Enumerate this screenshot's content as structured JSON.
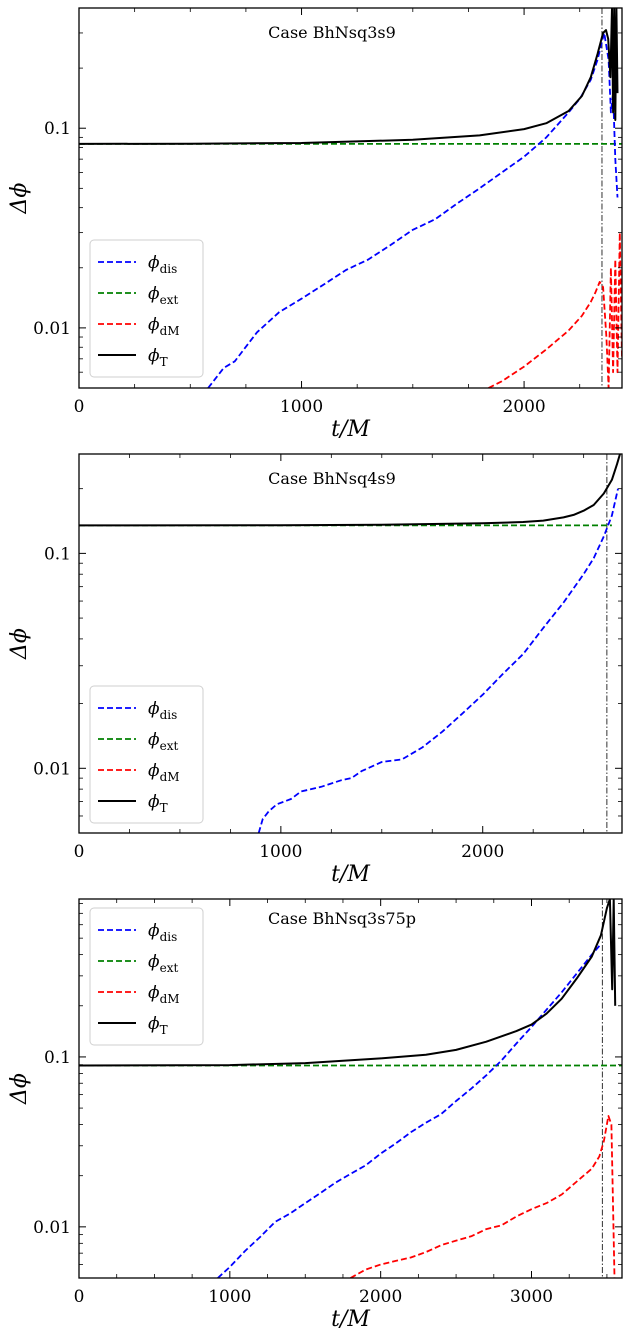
{
  "figure": {
    "panel_count": 3
  },
  "chart_data": [
    {
      "type": "line",
      "title": "Case BhNsq3s9",
      "xlabel": "t/M",
      "ylabel": "Δϕ",
      "xlim": [
        0,
        2440
      ],
      "ylim": [
        0.005,
        0.4
      ],
      "yscale": "log",
      "grid": false,
      "xticks": [
        0,
        1000,
        2000
      ],
      "xtick_labels": [
        "0",
        "1000",
        "2000"
      ],
      "yticks": [
        0.01,
        0.1
      ],
      "ytick_labels": [
        "0.01",
        "0.1"
      ],
      "legend": {
        "position": "lower-left",
        "entries": [
          {
            "base": "ϕ",
            "sub": "dis",
            "color": "#0000ff",
            "dash": "dashed"
          },
          {
            "base": "ϕ",
            "sub": "ext",
            "color": "#008000",
            "dash": "dashed"
          },
          {
            "base": "ϕ",
            "sub": "dM",
            "color": "#ff0000",
            "dash": "dashed"
          },
          {
            "base": "ϕ",
            "sub": "T",
            "color": "#000000",
            "dash": "solid"
          }
        ]
      },
      "vline_x": 2350,
      "series": [
        {
          "name": "ϕdis",
          "color": "#0000ff",
          "dash": "dashed",
          "x": [
            580,
            650,
            700,
            800,
            900,
            1000,
            1100,
            1200,
            1300,
            1400,
            1500,
            1600,
            1700,
            1800,
            1900,
            2000,
            2100,
            2200,
            2250,
            2300,
            2330,
            2360,
            2380,
            2390,
            2400,
            2410,
            2420
          ],
          "y": [
            0.005,
            0.0063,
            0.0068,
            0.0095,
            0.012,
            0.014,
            0.0165,
            0.0195,
            0.022,
            0.026,
            0.031,
            0.035,
            0.042,
            0.05,
            0.06,
            0.072,
            0.09,
            0.12,
            0.14,
            0.175,
            0.22,
            0.3,
            0.22,
            0.12,
            0.15,
            0.07,
            0.045
          ]
        },
        {
          "name": "ϕext",
          "color": "#008000",
          "dash": "dashed",
          "x": [
            0,
            2440
          ],
          "y": [
            0.0835,
            0.0835
          ]
        },
        {
          "name": "ϕdM",
          "color": "#ff0000",
          "dash": "dashed",
          "x": [
            1840,
            1900,
            2000,
            2100,
            2200,
            2260,
            2300,
            2320,
            2340,
            2355,
            2370,
            2380,
            2390,
            2400,
            2410,
            2420,
            2430,
            2440
          ],
          "y": [
            0.005,
            0.0054,
            0.0064,
            0.0078,
            0.0097,
            0.0115,
            0.0135,
            0.015,
            0.017,
            0.016,
            0.009,
            0.005,
            0.02,
            0.006,
            0.022,
            0.006,
            0.03,
            0.007
          ]
        },
        {
          "name": "ϕT",
          "color": "#000000",
          "dash": "solid",
          "x": [
            0,
            500,
            1000,
            1500,
            1800,
            2000,
            2100,
            2200,
            2260,
            2300,
            2330,
            2355,
            2368,
            2378,
            2388,
            2395,
            2400,
            2405,
            2410,
            2415,
            2420
          ],
          "y": [
            0.0835,
            0.0836,
            0.0843,
            0.0875,
            0.092,
            0.099,
            0.106,
            0.122,
            0.145,
            0.18,
            0.235,
            0.3,
            0.31,
            0.28,
            0.18,
            0.4,
            0.12,
            0.4,
            0.11,
            0.4,
            0.15
          ]
        }
      ]
    },
    {
      "type": "line",
      "title": "Case BhNsq4s9",
      "xlabel": "t/M",
      "ylabel": "Δϕ",
      "xlim": [
        0,
        2690
      ],
      "ylim": [
        0.005,
        0.29
      ],
      "yscale": "log",
      "grid": false,
      "xticks": [
        0,
        1000,
        2000
      ],
      "xtick_labels": [
        "0",
        "1000",
        "2000"
      ],
      "yticks": [
        0.01,
        0.1
      ],
      "ytick_labels": [
        "0.01",
        "0.1"
      ],
      "legend": {
        "position": "lower-left",
        "entries": [
          {
            "base": "ϕ",
            "sub": "dis",
            "color": "#0000ff",
            "dash": "dashed"
          },
          {
            "base": "ϕ",
            "sub": "ext",
            "color": "#008000",
            "dash": "dashed"
          },
          {
            "base": "ϕ",
            "sub": "dM",
            "color": "#ff0000",
            "dash": "dashed"
          },
          {
            "base": "ϕ",
            "sub": "T",
            "color": "#000000",
            "dash": "solid"
          }
        ]
      },
      "vline_x": 2615,
      "series": [
        {
          "name": "ϕdis",
          "color": "#0000ff",
          "dash": "dashed",
          "x": [
            890,
            910,
            940,
            980,
            1050,
            1100,
            1200,
            1300,
            1350,
            1400,
            1500,
            1600,
            1700,
            1800,
            1900,
            2000,
            2100,
            2200,
            2300,
            2400,
            2500,
            2550,
            2600,
            2640,
            2670
          ],
          "y": [
            0.005,
            0.0058,
            0.0063,
            0.0068,
            0.0072,
            0.0078,
            0.0082,
            0.0088,
            0.009,
            0.0097,
            0.0107,
            0.011,
            0.0125,
            0.0148,
            0.018,
            0.022,
            0.0275,
            0.034,
            0.045,
            0.059,
            0.08,
            0.095,
            0.12,
            0.15,
            0.2
          ]
        },
        {
          "name": "ϕext",
          "color": "#008000",
          "dash": "dashed",
          "x": [
            0,
            2640
          ],
          "y": [
            0.135,
            0.135
          ]
        },
        {
          "name": "ϕT",
          "color": "#000000",
          "dash": "solid",
          "x": [
            0,
            1000,
            1500,
            2000,
            2200,
            2300,
            2400,
            2450,
            2500,
            2550,
            2600,
            2640,
            2665,
            2680
          ],
          "y": [
            0.135,
            0.1352,
            0.136,
            0.138,
            0.14,
            0.142,
            0.147,
            0.151,
            0.158,
            0.168,
            0.19,
            0.22,
            0.26,
            0.29
          ]
        }
      ]
    },
    {
      "type": "line",
      "title": "Case BhNsq3s75p",
      "xlabel": "t/M",
      "ylabel": "Δϕ",
      "xlim": [
        0,
        3600
      ],
      "ylim": [
        0.005,
        0.85
      ],
      "yscale": "log",
      "grid": false,
      "xticks": [
        0,
        1000,
        2000,
        3000
      ],
      "xtick_labels": [
        "0",
        "1000",
        "2000",
        "3000"
      ],
      "yticks": [
        0.01,
        0.1
      ],
      "ytick_labels": [
        "0.01",
        "0.1"
      ],
      "legend": {
        "position": "top-left",
        "entries": [
          {
            "base": "ϕ",
            "sub": "dis",
            "color": "#0000ff",
            "dash": "dashed"
          },
          {
            "base": "ϕ",
            "sub": "ext",
            "color": "#008000",
            "dash": "dashed"
          },
          {
            "base": "ϕ",
            "sub": "dM",
            "color": "#ff0000",
            "dash": "dashed"
          },
          {
            "base": "ϕ",
            "sub": "T",
            "color": "#000000",
            "dash": "solid"
          }
        ]
      },
      "vline_x": 3470,
      "series": [
        {
          "name": "ϕdis",
          "color": "#0000ff",
          "dash": "dashed",
          "x": [
            920,
            1000,
            1100,
            1200,
            1300,
            1400,
            1500,
            1600,
            1700,
            1800,
            1900,
            2000,
            2100,
            2200,
            2300,
            2400,
            2500,
            2600,
            2700,
            2800,
            2900,
            3000,
            3100,
            3200,
            3300,
            3400,
            3450
          ],
          "y": [
            0.005,
            0.0058,
            0.0072,
            0.0087,
            0.0107,
            0.012,
            0.0138,
            0.0158,
            0.0182,
            0.0205,
            0.023,
            0.027,
            0.031,
            0.036,
            0.041,
            0.046,
            0.055,
            0.065,
            0.078,
            0.095,
            0.12,
            0.15,
            0.19,
            0.24,
            0.31,
            0.4,
            0.45
          ]
        },
        {
          "name": "ϕext",
          "color": "#008000",
          "dash": "dashed",
          "x": [
            0,
            3600
          ],
          "y": [
            0.089,
            0.089
          ]
        },
        {
          "name": "ϕdM",
          "color": "#ff0000",
          "dash": "dashed",
          "x": [
            1800,
            1900,
            2000,
            2100,
            2200,
            2300,
            2400,
            2500,
            2600,
            2700,
            2800,
            2900,
            3000,
            3100,
            3200,
            3300,
            3400,
            3450,
            3480,
            3510,
            3530,
            3550
          ],
          "y": [
            0.005,
            0.0056,
            0.006,
            0.0063,
            0.0066,
            0.0071,
            0.0078,
            0.0083,
            0.0088,
            0.0097,
            0.0102,
            0.0115,
            0.0127,
            0.0138,
            0.0155,
            0.0185,
            0.022,
            0.026,
            0.032,
            0.045,
            0.04,
            0.005
          ]
        },
        {
          "name": "ϕT",
          "color": "#000000",
          "dash": "solid",
          "x": [
            0,
            1000,
            1500,
            2000,
            2300,
            2500,
            2700,
            2900,
            3000,
            3100,
            3200,
            3300,
            3400,
            3460,
            3500,
            3520,
            3535,
            3545,
            3555
          ],
          "y": [
            0.089,
            0.0895,
            0.092,
            0.098,
            0.103,
            0.11,
            0.123,
            0.142,
            0.155,
            0.18,
            0.22,
            0.29,
            0.39,
            0.52,
            0.75,
            0.85,
            0.25,
            0.85,
            0.2
          ]
        }
      ]
    }
  ]
}
